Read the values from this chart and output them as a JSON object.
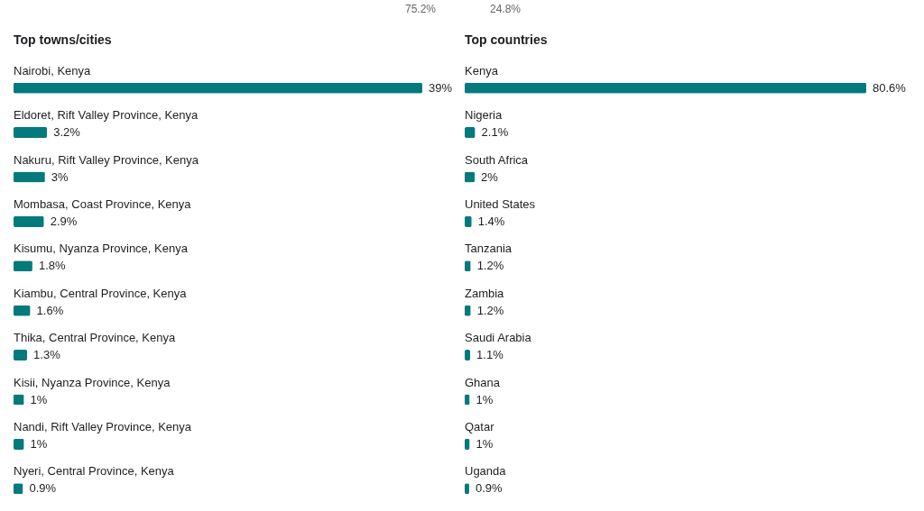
{
  "chart_data": [
    {
      "type": "bar",
      "orientation": "horizontal",
      "title": "Top towns/cities",
      "annotations": [
        "75.2%"
      ],
      "categories": [
        "Nairobi, Kenya",
        "Eldoret, Rift Valley Province, Kenya",
        "Nakuru, Rift Valley Province, Kenya",
        "Mombasa, Coast Province, Kenya",
        "Kisumu, Nyanza Province, Kenya",
        "Kiambu, Central Province, Kenya",
        "Thika, Central Province, Kenya",
        "Kisii, Nyanza Province, Kenya",
        "Nandi, Rift Valley Province, Kenya",
        "Nyeri, Central Province, Kenya"
      ],
      "values": [
        39,
        3.2,
        3,
        2.9,
        1.8,
        1.6,
        1.3,
        1,
        1,
        0.9
      ],
      "value_labels": [
        "39%",
        "3.2%",
        "3%",
        "2.9%",
        "1.8%",
        "1.6%",
        "1.3%",
        "1%",
        "1%",
        "0.9%"
      ],
      "color": "#047a7c",
      "tick_labels": false
    },
    {
      "type": "bar",
      "orientation": "horizontal",
      "title": "Top countries",
      "annotations": [
        "24.8%"
      ],
      "categories": [
        "Kenya",
        "Nigeria",
        "South Africa",
        "United States",
        "Tanzania",
        "Zambia",
        "Saudi Arabia",
        "Ghana",
        "Qatar",
        "Uganda"
      ],
      "values": [
        80.6,
        2.1,
        2,
        1.4,
        1.2,
        1.2,
        1.1,
        1,
        1,
        0.9
      ],
      "value_labels": [
        "80.6%",
        "2.1%",
        "2%",
        "1.4%",
        "1.2%",
        "1.2%",
        "1.1%",
        "1%",
        "1%",
        "0.9%"
      ],
      "color": "#047a7c",
      "tick_labels": false
    }
  ]
}
